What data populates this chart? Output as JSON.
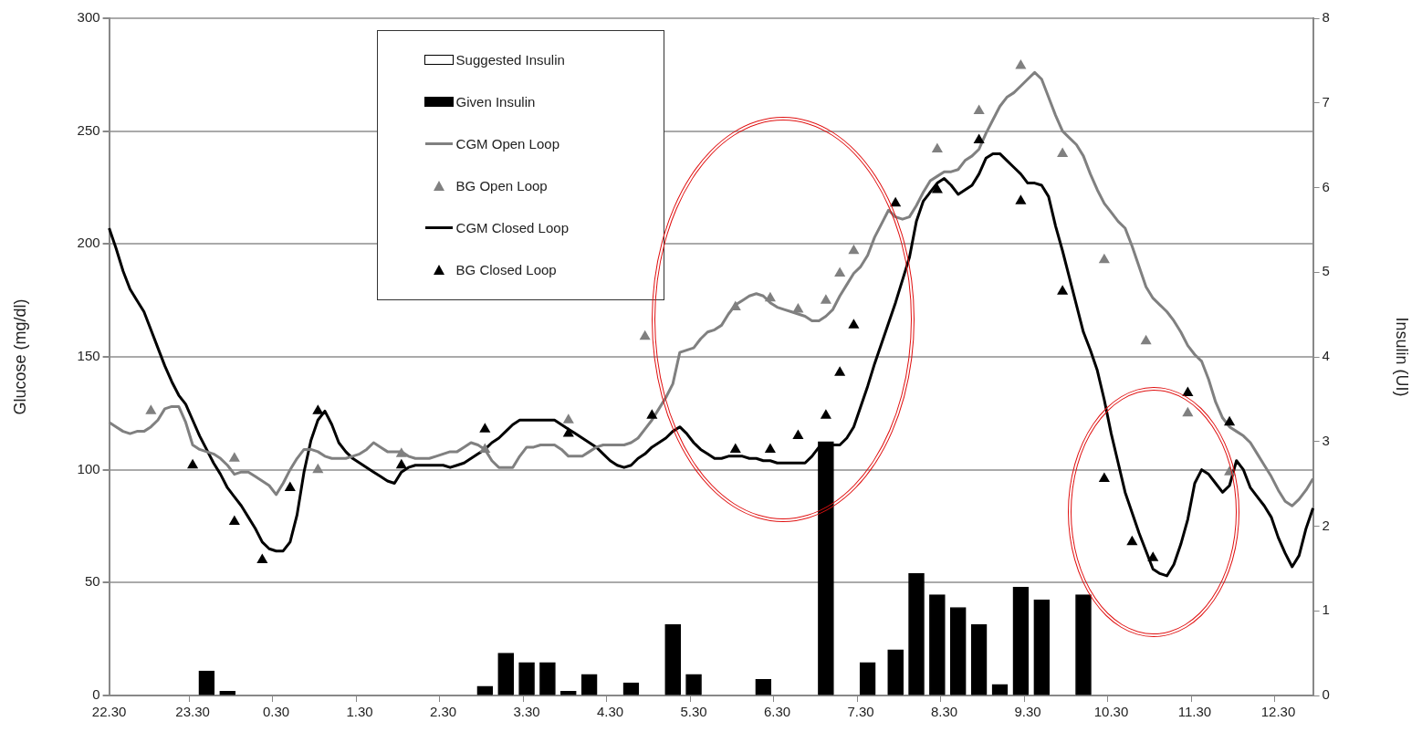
{
  "chart_data": {
    "type": "line",
    "ylabel": "Glucose (mg/dl)",
    "y2label": "Insulin (UI)",
    "categories": [
      "22.30",
      null,
      null,
      null,
      null,
      null,
      null,
      null,
      null,
      null,
      null,
      null,
      "23.30",
      null,
      null,
      null,
      null,
      null,
      null,
      null,
      null,
      null,
      null,
      null,
      "0.30",
      null,
      null,
      null,
      null,
      null,
      null,
      null,
      null,
      null,
      null,
      null,
      "1.30",
      null,
      null,
      null,
      null,
      null,
      null,
      null,
      null,
      null,
      null,
      null,
      "2.30",
      null,
      null,
      null,
      null,
      null,
      null,
      null,
      null,
      null,
      null,
      null,
      "3.30",
      null,
      null,
      null,
      null,
      null,
      null,
      null,
      null,
      null,
      null,
      null,
      "4.30",
      null,
      null,
      null,
      null,
      null,
      null,
      null,
      null,
      null,
      null,
      null,
      "5.30",
      null,
      null,
      null,
      null,
      null,
      null,
      null,
      null,
      null,
      null,
      null,
      "6.30",
      null,
      null,
      null,
      null,
      null,
      null,
      null,
      null,
      null,
      null,
      null,
      "7.30",
      null,
      null,
      null,
      null,
      null,
      null,
      null,
      null,
      null,
      null,
      null,
      "8.30",
      null,
      null,
      null,
      null,
      null,
      null,
      null,
      null,
      null,
      null,
      null,
      "9.30",
      null,
      null,
      null,
      null,
      null,
      null,
      null,
      null,
      null,
      null,
      null,
      "10.30",
      null,
      null,
      null,
      null,
      null,
      null,
      null,
      null,
      null,
      null,
      null,
      "11.30",
      null,
      null,
      null,
      null,
      null,
      null,
      null,
      null,
      null,
      null,
      null,
      "12.30",
      null,
      null,
      null,
      null,
      null
    ],
    "ylim": [
      0,
      300
    ],
    "yticks": [
      0,
      50,
      100,
      150,
      200,
      250,
      300
    ],
    "y2lim": [
      0,
      8
    ],
    "y2ticks": [
      0,
      1,
      2,
      3,
      4,
      5,
      6,
      7,
      8
    ],
    "grid": "y",
    "legend": "top left",
    "series": [
      {
        "name": "Suggested Insulin",
        "type": "bar",
        "axis": "y2",
        "color": "#ffffff",
        "values": [
          null,
          null,
          null,
          null,
          null,
          null,
          null,
          null,
          null,
          null,
          null,
          null,
          null,
          null,
          null,
          null,
          null,
          null,
          null,
          null,
          null,
          null,
          null,
          null,
          null,
          null,
          null,
          null,
          null,
          null,
          null,
          null,
          null,
          null,
          null,
          null,
          null,
          null,
          null,
          null,
          null,
          null,
          null,
          null,
          null,
          null,
          null,
          null,
          null,
          null,
          null,
          null,
          null,
          null,
          null,
          null,
          null,
          null,
          null,
          null,
          null,
          null,
          null,
          null,
          null,
          null,
          null,
          null,
          null,
          null,
          null,
          null,
          null,
          null,
          null,
          null,
          null,
          null,
          null,
          null,
          null,
          null,
          null,
          null,
          null,
          null,
          null,
          null,
          null,
          null,
          null,
          null,
          null,
          null,
          null,
          null,
          null,
          null,
          null,
          null,
          null,
          null,
          null,
          null,
          null,
          null,
          null,
          null,
          null,
          null,
          null,
          null,
          null,
          null,
          null,
          null,
          null,
          null,
          null,
          null,
          null,
          null,
          null,
          null,
          null,
          null,
          null,
          null,
          null,
          null,
          null,
          null,
          null,
          null,
          null,
          null,
          null,
          null,
          null,
          null,
          null,
          null,
          null,
          null,
          null,
          null,
          null,
          null,
          null,
          null,
          null,
          null,
          null,
          null,
          null,
          null,
          null,
          null,
          null,
          null,
          null,
          null,
          null,
          null,
          null,
          null,
          null,
          null,
          null,
          null,
          null,
          null,
          null,
          null
        ]
      },
      {
        "name": "Given Insulin",
        "type": "bar",
        "axis": "y2",
        "color": "#000000",
        "values": [
          null,
          null,
          null,
          null,
          null,
          null,
          null,
          null,
          null,
          null,
          null,
          null,
          null,
          null,
          0.29,
          null,
          null,
          0.05,
          null,
          null,
          null,
          null,
          null,
          null,
          null,
          null,
          null,
          null,
          null,
          null,
          null,
          null,
          null,
          null,
          null,
          null,
          null,
          null,
          null,
          null,
          null,
          null,
          null,
          null,
          null,
          null,
          null,
          null,
          null,
          null,
          null,
          null,
          null,
          null,
          0.11,
          null,
          null,
          0.5,
          null,
          null,
          0.39,
          null,
          null,
          0.39,
          null,
          null,
          0.05,
          null,
          null,
          0.25,
          null,
          null,
          null,
          null,
          null,
          0.15,
          null,
          null,
          null,
          null,
          null,
          0.84,
          null,
          null,
          0.25,
          null,
          null,
          null,
          null,
          null,
          null,
          null,
          null,
          null,
          0.19,
          null,
          null,
          null,
          null,
          null,
          null,
          null,
          null,
          3.0,
          null,
          null,
          null,
          null,
          null,
          0.39,
          null,
          null,
          null,
          0.54,
          null,
          null,
          1.44,
          null,
          null,
          1.19,
          null,
          null,
          1.04,
          null,
          null,
          0.84,
          null,
          null,
          0.13,
          null,
          null,
          1.28,
          null,
          null,
          1.13,
          null,
          null,
          null,
          null,
          null,
          1.19,
          null,
          null,
          null,
          null,
          null,
          null,
          null,
          null,
          null,
          null,
          null,
          null,
          null,
          null,
          null,
          null,
          null,
          null,
          null,
          null,
          null,
          null,
          null,
          null,
          null,
          null,
          null,
          null,
          null,
          null,
          null,
          null,
          null
        ]
      },
      {
        "name": "CGM Open Loop",
        "color": "#808080",
        "values": [
          121,
          119,
          117,
          116,
          117,
          117,
          119,
          122,
          127,
          128,
          128,
          121,
          111,
          109,
          108,
          107,
          105,
          102,
          98,
          99,
          99,
          97,
          95,
          93,
          89,
          94,
          100,
          105,
          109,
          109,
          108,
          106,
          105,
          105,
          105,
          106,
          107,
          109,
          112,
          110,
          108,
          108,
          108,
          106,
          105,
          105,
          105,
          106,
          107,
          108,
          108,
          110,
          112,
          111,
          109,
          104,
          101,
          101,
          101,
          106,
          110,
          110,
          111,
          111,
          111,
          109,
          106,
          106,
          106,
          108,
          110,
          111,
          111,
          111,
          111,
          112,
          114,
          118,
          122,
          127,
          132,
          138,
          152,
          153,
          154,
          158,
          161,
          162,
          164,
          169,
          173,
          175,
          177,
          178,
          177,
          174,
          172,
          171,
          170,
          169,
          168,
          166,
          166,
          168,
          171,
          177,
          182,
          187,
          190,
          195,
          203,
          209,
          215,
          212,
          211,
          212,
          217,
          223,
          228,
          230,
          232,
          232,
          233,
          237,
          239,
          242,
          249,
          255,
          261,
          265,
          267,
          270,
          273,
          276,
          273,
          265,
          257,
          250,
          247,
          244,
          239,
          231,
          224,
          218,
          214,
          210,
          207,
          199,
          190,
          181,
          176,
          173,
          170,
          166,
          161,
          155,
          151,
          148,
          140,
          130,
          123,
          119,
          117,
          115,
          112,
          107,
          102,
          97,
          91,
          86,
          84,
          87,
          91,
          96
        ]
      },
      {
        "name": "BG Open Loop",
        "type": "scatter",
        "marker": "triangle",
        "color": "#808080",
        "values": [
          null,
          null,
          null,
          null,
          null,
          null,
          126,
          null,
          null,
          null,
          null,
          null,
          null,
          null,
          null,
          null,
          null,
          null,
          105,
          null,
          null,
          null,
          null,
          null,
          null,
          null,
          null,
          null,
          null,
          null,
          100,
          null,
          null,
          null,
          null,
          null,
          null,
          null,
          null,
          null,
          null,
          null,
          107,
          null,
          null,
          null,
          null,
          null,
          null,
          null,
          null,
          null,
          null,
          null,
          109,
          null,
          null,
          null,
          null,
          null,
          null,
          null,
          null,
          null,
          null,
          null,
          122,
          null,
          null,
          null,
          null,
          null,
          null,
          null,
          null,
          null,
          null,
          159,
          null,
          null,
          null,
          null,
          null,
          null,
          null,
          null,
          null,
          null,
          null,
          null,
          172,
          null,
          null,
          null,
          null,
          176,
          null,
          null,
          null,
          171,
          null,
          null,
          null,
          175,
          null,
          187,
          null,
          197,
          null,
          null,
          null,
          null,
          null,
          null,
          null,
          null,
          null,
          null,
          null,
          242,
          null,
          null,
          null,
          null,
          null,
          259,
          null,
          null,
          null,
          null,
          null,
          279,
          null,
          null,
          null,
          null,
          null,
          240,
          null,
          null,
          null,
          null,
          null,
          193,
          null,
          null,
          null,
          null,
          null,
          157,
          null,
          null,
          null,
          null,
          null,
          125,
          null,
          null,
          null,
          null,
          null,
          99,
          null,
          null,
          null,
          null,
          null,
          null,
          null,
          null,
          null,
          null,
          null,
          null
        ]
      },
      {
        "name": "CGM Closed Loop",
        "color": "#000000",
        "values": [
          207,
          198,
          188,
          180,
          175,
          170,
          162,
          154,
          146,
          139,
          133,
          129,
          122,
          115,
          109,
          103,
          98,
          92,
          88,
          84,
          79,
          74,
          68,
          65,
          64,
          64,
          68,
          80,
          99,
          113,
          122,
          126,
          120,
          112,
          108,
          105,
          103,
          101,
          99,
          97,
          95,
          94,
          99,
          101,
          102,
          102,
          102,
          102,
          102,
          101,
          102,
          103,
          105,
          107,
          109,
          112,
          114,
          117,
          120,
          122,
          122,
          122,
          122,
          122,
          122,
          120,
          118,
          116,
          114,
          112,
          110,
          107,
          104,
          102,
          101,
          102,
          105,
          107,
          110,
          112,
          114,
          117,
          119,
          116,
          112,
          109,
          107,
          105,
          105,
          106,
          106,
          106,
          105,
          105,
          104,
          104,
          103,
          103,
          103,
          103,
          103,
          106,
          110,
          111,
          111,
          111,
          114,
          119,
          128,
          137,
          147,
          156,
          165,
          174,
          184,
          194,
          210,
          219,
          223,
          227,
          229,
          226,
          222,
          224,
          226,
          231,
          238,
          240,
          240,
          237,
          234,
          231,
          227,
          227,
          226,
          221,
          208,
          197,
          185,
          173,
          161,
          153,
          144,
          131,
          116,
          103,
          90,
          81,
          72,
          64,
          56,
          54,
          53,
          58,
          67,
          78,
          94,
          100,
          98,
          94,
          90,
          93,
          104,
          100,
          92,
          88,
          84,
          79,
          70,
          63,
          57,
          62,
          74,
          83
        ]
      },
      {
        "name": "BG Closed Loop",
        "type": "scatter",
        "marker": "triangle",
        "color": "#000000",
        "values": [
          null,
          null,
          null,
          null,
          null,
          null,
          null,
          null,
          null,
          null,
          null,
          null,
          102,
          null,
          null,
          null,
          null,
          null,
          77,
          null,
          null,
          null,
          60,
          null,
          null,
          null,
          92,
          null,
          null,
          null,
          126,
          null,
          null,
          null,
          null,
          null,
          null,
          null,
          null,
          null,
          null,
          null,
          102,
          null,
          null,
          null,
          null,
          null,
          null,
          null,
          null,
          null,
          null,
          null,
          118,
          null,
          null,
          null,
          null,
          null,
          null,
          null,
          null,
          null,
          null,
          null,
          116,
          null,
          null,
          null,
          null,
          null,
          null,
          null,
          null,
          null,
          null,
          null,
          124,
          null,
          null,
          null,
          null,
          null,
          null,
          null,
          null,
          null,
          null,
          null,
          109,
          null,
          null,
          null,
          null,
          109,
          null,
          null,
          null,
          115,
          null,
          null,
          null,
          124,
          null,
          143,
          null,
          164,
          null,
          null,
          null,
          null,
          null,
          218,
          null,
          null,
          null,
          null,
          null,
          224,
          null,
          null,
          null,
          null,
          null,
          246,
          null,
          null,
          null,
          null,
          null,
          219,
          null,
          null,
          null,
          null,
          null,
          179,
          null,
          null,
          null,
          null,
          null,
          96,
          null,
          null,
          null,
          68,
          null,
          null,
          61,
          null,
          null,
          null,
          null,
          134,
          null,
          null,
          null,
          null,
          null,
          121,
          null,
          null,
          null,
          null,
          null,
          null,
          null,
          null,
          null,
          null,
          null,
          null
        ]
      }
    ]
  }
}
